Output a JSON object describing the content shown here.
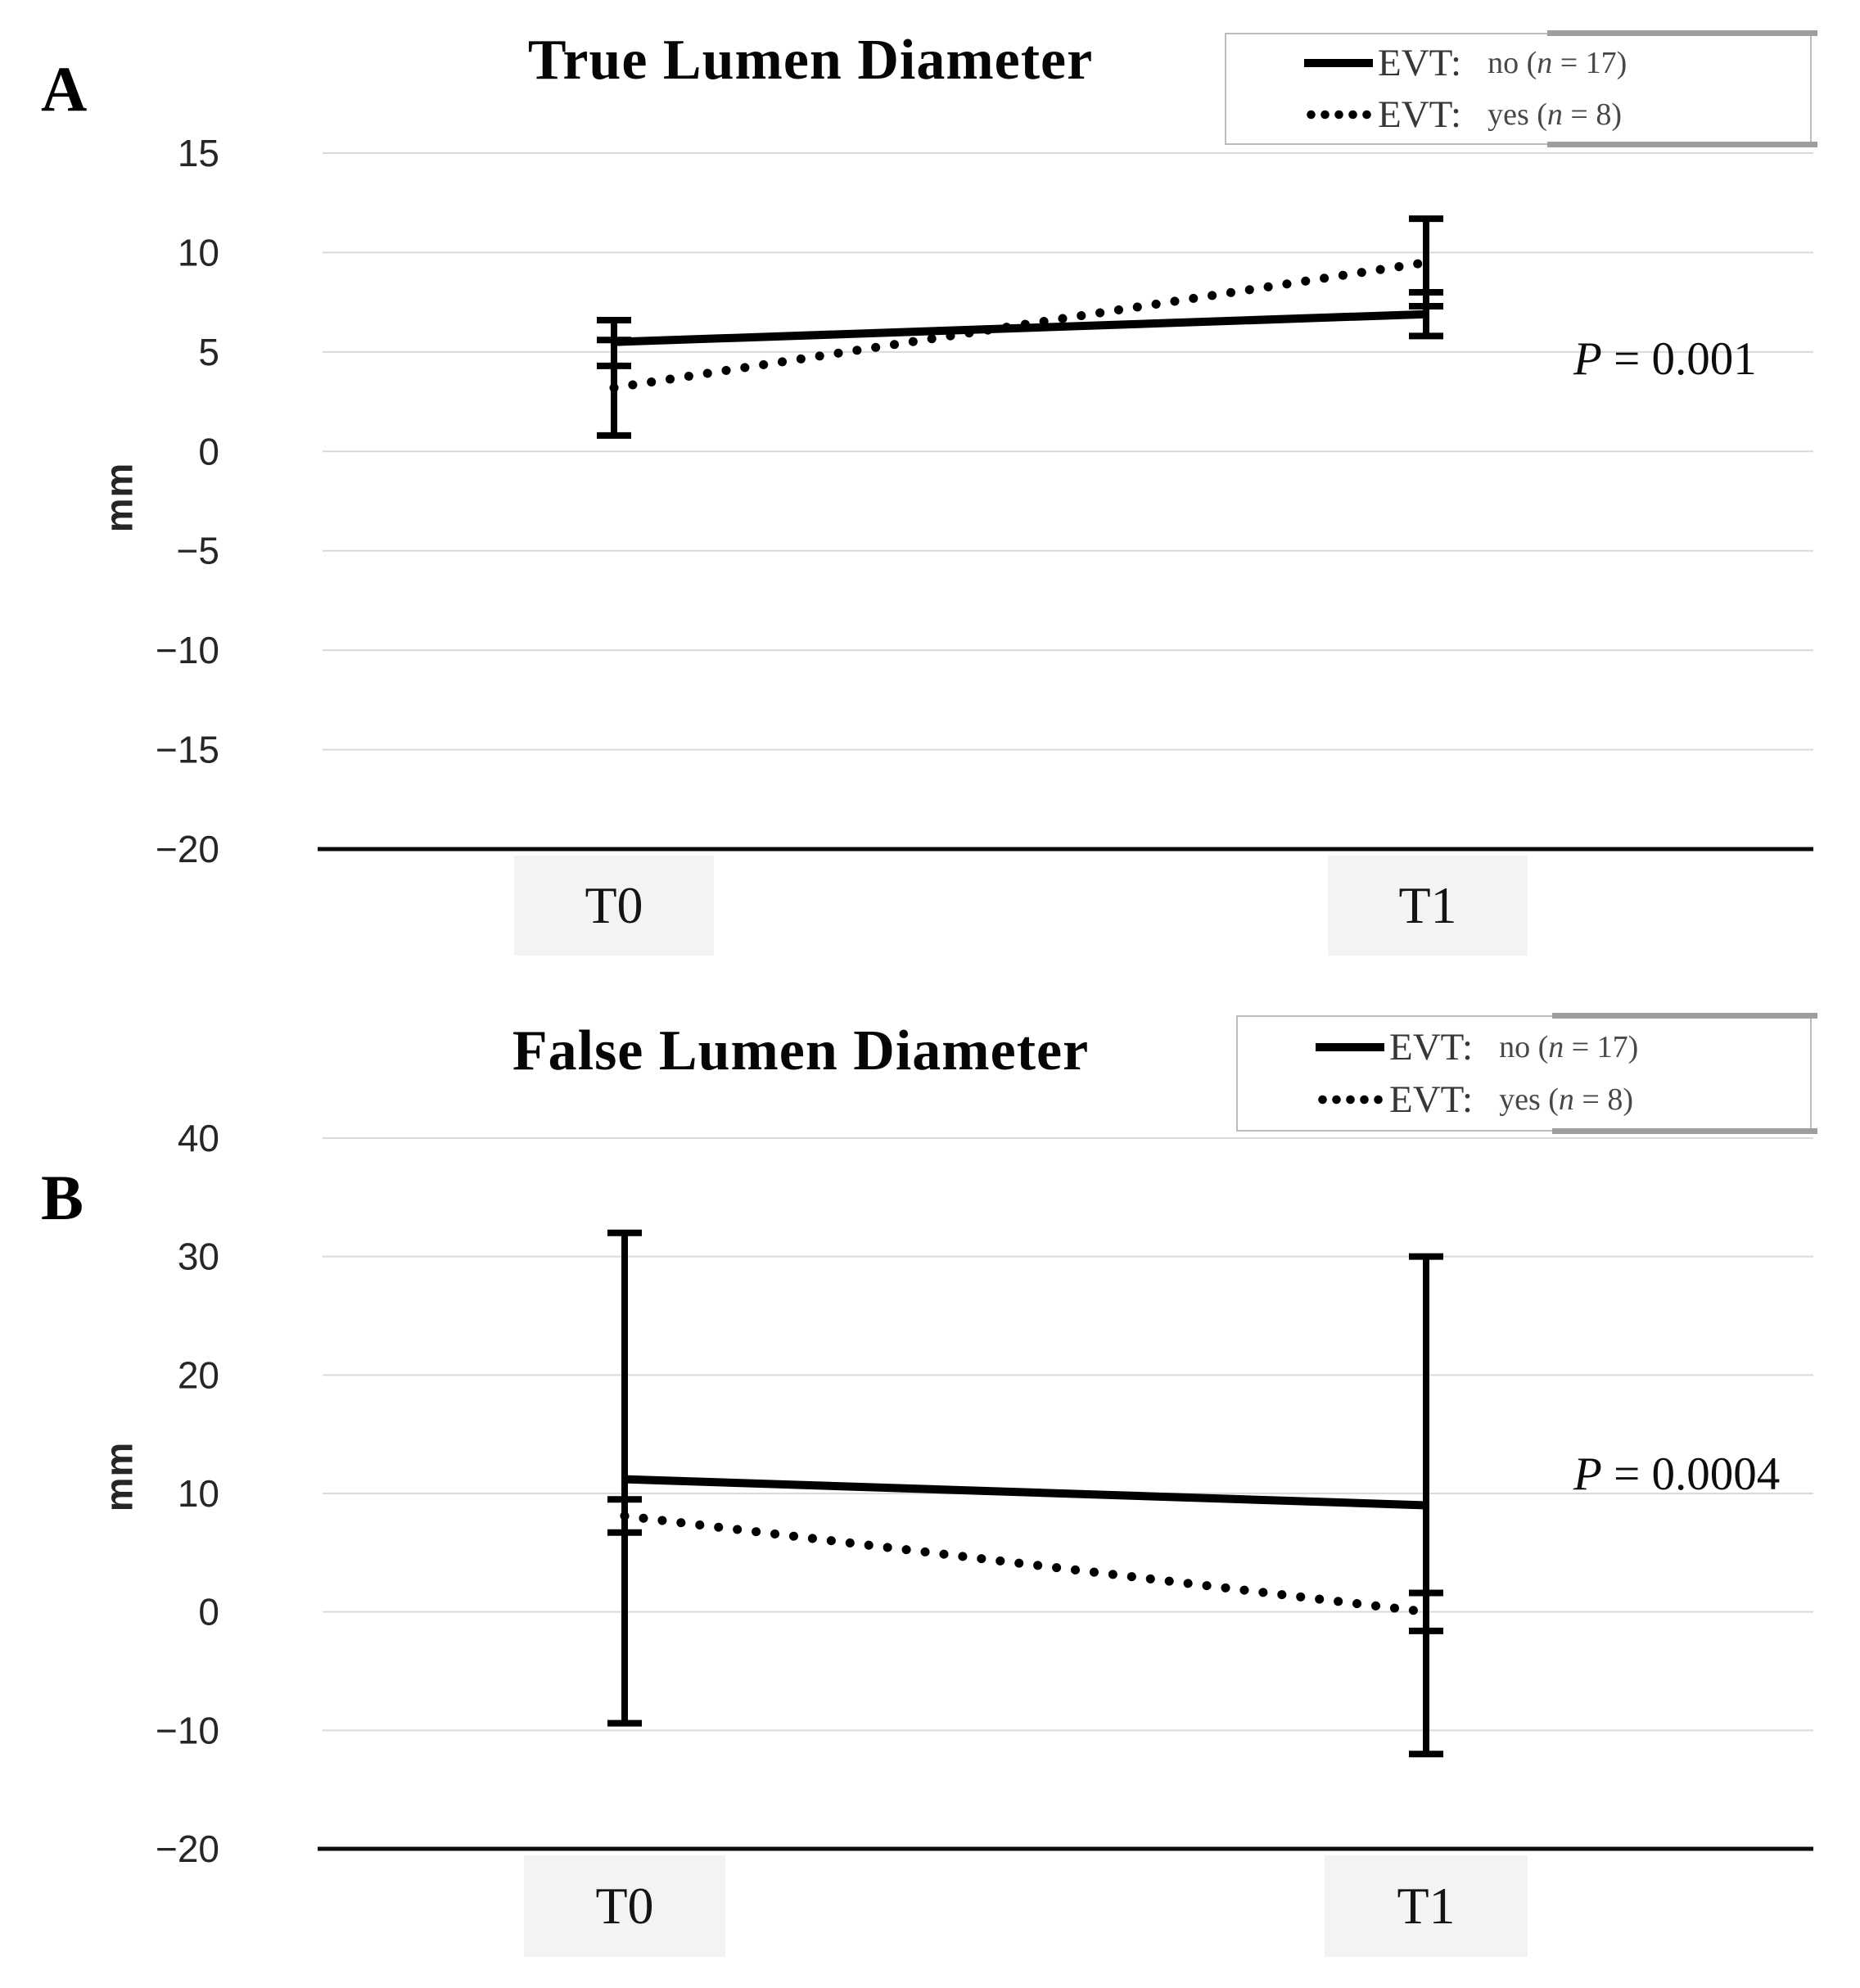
{
  "figure": {
    "background": "#ffffff",
    "line_color": "#000000",
    "gridline_color": "#d9d9d9",
    "axis_color": "#0a0a0a",
    "tick_label_color": "#262626",
    "legend_text_color": "#3f3f3f",
    "category_box_color": "#f3f3f3"
  },
  "chart_data": [
    {
      "type": "line",
      "panel_label": "A",
      "title": "True Lumen Diameter",
      "ylabel": "mm",
      "x": [
        "T0",
        "T1"
      ],
      "ylim": [
        -20,
        15
      ],
      "yticks": [
        15,
        10,
        5,
        0,
        -5,
        -10,
        -15,
        -20
      ],
      "grid": true,
      "legend_position": "top-right",
      "legend": [
        {
          "swatch": "solid-line",
          "prefix": "EVT:",
          "value": "no (n = 17)",
          "value_parts": [
            "no (",
            "n",
            " = 17)"
          ]
        },
        {
          "swatch": "dotted-line",
          "prefix": "EVT:",
          "value": "yes (n = 8)",
          "value_parts": [
            "yes (",
            "n",
            " = 8)"
          ]
        }
      ],
      "series": [
        {
          "name": "EVT: no (n = 17)",
          "style": "solid",
          "values": [
            5.5,
            6.9
          ],
          "err_low": [
            4.3,
            5.8
          ],
          "err_high": [
            6.6,
            8.0
          ]
        },
        {
          "name": "EVT: yes (n = 8)",
          "style": "dotted",
          "values": [
            3.2,
            9.5
          ],
          "err_low": [
            0.8,
            7.3
          ],
          "err_high": [
            5.6,
            11.7
          ]
        }
      ],
      "annotation": "P = 0.001",
      "annotation_parts": [
        "P",
        " = 0.001"
      ]
    },
    {
      "type": "line",
      "panel_label": "B",
      "title": "False Lumen Diameter",
      "ylabel": "mm",
      "x": [
        "T0",
        "T1"
      ],
      "ylim": [
        -20,
        40
      ],
      "yticks": [
        40,
        30,
        20,
        10,
        0,
        -10,
        -20
      ],
      "grid": true,
      "legend_position": "top-right",
      "legend": [
        {
          "swatch": "solid-line",
          "prefix": "EVT:",
          "value": "no (n = 17)",
          "value_parts": [
            "no (",
            "n",
            " = 17)"
          ]
        },
        {
          "swatch": "dotted-line",
          "prefix": "EVT:",
          "value": "yes (n = 8)",
          "value_parts": [
            "yes (",
            "n",
            " = 8)"
          ]
        }
      ],
      "series": [
        {
          "name": "EVT: no (n = 17)",
          "style": "solid",
          "values": [
            11.2,
            9.0
          ],
          "err_low": [
            -9.4,
            -12.0
          ],
          "err_high": [
            32.0,
            30.0
          ]
        },
        {
          "name": "EVT: yes (n = 8)",
          "style": "dotted",
          "values": [
            8.1,
            0.0
          ],
          "err_low": [
            6.7,
            -1.6
          ],
          "err_high": [
            9.5,
            1.6
          ]
        }
      ],
      "annotation": "P = 0.0004",
      "annotation_parts": [
        "P",
        " = 0.0004"
      ]
    }
  ]
}
